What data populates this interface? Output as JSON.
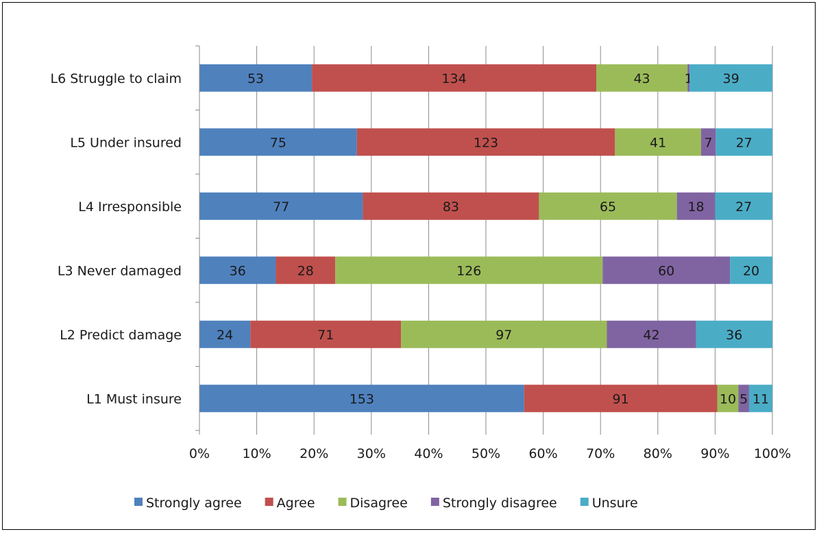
{
  "chart_data": {
    "type": "bar",
    "orientation": "horizontal",
    "stacked": "percent",
    "categories": [
      "L1 Must insure",
      "L2 Predict damage",
      "L3 Never damaged",
      "L4 Irresponsible",
      "L5 Under insured",
      "L6 Struggle to claim"
    ],
    "series": [
      {
        "name": "Strongly agree",
        "color": "#4F81BD",
        "values": [
          153,
          24,
          36,
          77,
          75,
          53
        ]
      },
      {
        "name": "Agree",
        "color": "#C0504D",
        "values": [
          91,
          71,
          28,
          83,
          123,
          134
        ]
      },
      {
        "name": "Disagree",
        "color": "#9BBB59",
        "values": [
          10,
          97,
          126,
          65,
          41,
          43
        ]
      },
      {
        "name": "Strongly disagree",
        "color": "#8064A2",
        "values": [
          5,
          42,
          60,
          18,
          7,
          1
        ]
      },
      {
        "name": "Unsure",
        "color": "#4BACC6",
        "values": [
          11,
          36,
          20,
          27,
          27,
          39
        ]
      }
    ],
    "x_ticks": [
      "0%",
      "10%",
      "20%",
      "30%",
      "40%",
      "50%",
      "60%",
      "70%",
      "80%",
      "90%",
      "100%"
    ],
    "xlim": [
      0,
      100
    ],
    "grid": true,
    "legend": "bottom",
    "title": "",
    "xlabel": "",
    "ylabel": ""
  }
}
